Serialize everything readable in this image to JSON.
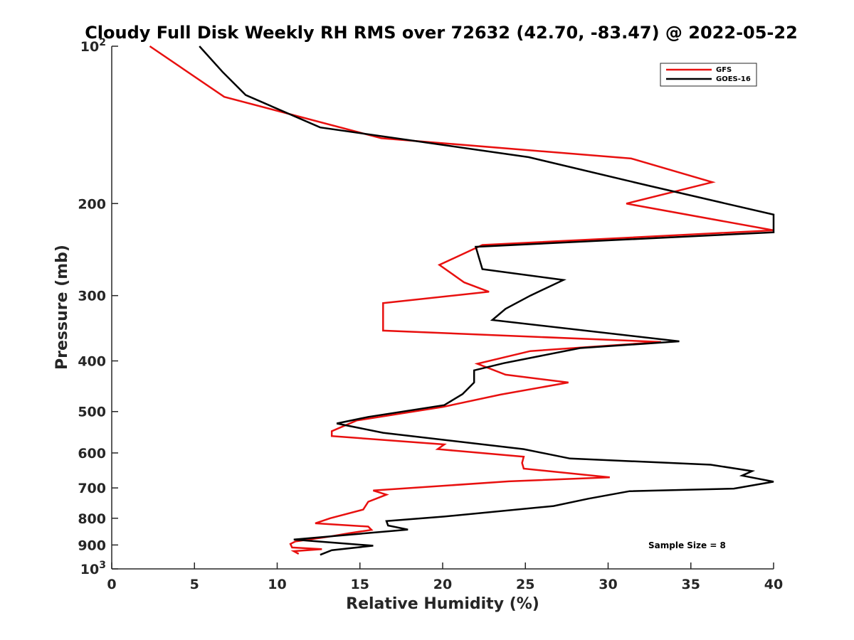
{
  "chart_data": {
    "type": "line",
    "title": "Cloudy Full Disk Weekly RH RMS over 72632 (42.70, -83.47) @ 2022-05-22",
    "xlabel": "Relative Humidity (%)",
    "ylabel": "Pressure (mb)",
    "xlim": [
      0,
      40
    ],
    "ylim": [
      100,
      1000
    ],
    "y_scale": "log",
    "y_reversed": true,
    "grid": false,
    "legend_position": "top-right",
    "annotation": "Sample Size = 8",
    "x_ticks": [
      "0",
      "5",
      "10",
      "15",
      "20",
      "25",
      "30",
      "35",
      "40"
    ],
    "y_ticks": [
      {
        "value": 100,
        "base": "10",
        "exp": "2"
      },
      {
        "value": 200,
        "label": "200"
      },
      {
        "value": 300,
        "label": "300"
      },
      {
        "value": 400,
        "label": "400"
      },
      {
        "value": 500,
        "label": "500"
      },
      {
        "value": 600,
        "label": "600"
      },
      {
        "value": 700,
        "label": "700"
      },
      {
        "value": 800,
        "label": "800"
      },
      {
        "value": 900,
        "label": "900"
      },
      {
        "value": 1000,
        "base": "10",
        "exp": "3"
      }
    ],
    "series": [
      {
        "name": "GFS",
        "color": "#e8100f",
        "points": [
          [
            2.3,
            100
          ],
          [
            6.8,
            125
          ],
          [
            16.3,
            150
          ],
          [
            31.4,
            164
          ],
          [
            36.3,
            182
          ],
          [
            31.1,
            200
          ],
          [
            40.0,
            225
          ],
          [
            22.4,
            240
          ],
          [
            19.8,
            262
          ],
          [
            21.3,
            283
          ],
          [
            22.8,
            295
          ],
          [
            16.4,
            310
          ],
          [
            16.4,
            350
          ],
          [
            33.2,
            368
          ],
          [
            25.3,
            383
          ],
          [
            22.1,
            405
          ],
          [
            23.8,
            425
          ],
          [
            27.6,
            440
          ],
          [
            23.5,
            464
          ],
          [
            20.0,
            490
          ],
          [
            14.8,
            520
          ],
          [
            13.3,
            545
          ],
          [
            13.3,
            557
          ],
          [
            20.1,
            578
          ],
          [
            19.7,
            590
          ],
          [
            24.9,
            610
          ],
          [
            24.8,
            627
          ],
          [
            24.9,
            643
          ],
          [
            30.1,
            668
          ],
          [
            24.0,
            680
          ],
          [
            15.8,
            708
          ],
          [
            16.6,
            721
          ],
          [
            15.5,
            744
          ],
          [
            15.2,
            770
          ],
          [
            13.2,
            800
          ],
          [
            12.3,
            818
          ],
          [
            15.5,
            830
          ],
          [
            15.7,
            842
          ],
          [
            14.3,
            855
          ],
          [
            13.1,
            868
          ],
          [
            11.1,
            886
          ],
          [
            10.8,
            896
          ],
          [
            10.9,
            910
          ],
          [
            12.7,
            917
          ],
          [
            11.0,
            925
          ],
          [
            11.3,
            936
          ]
        ]
      },
      {
        "name": "GOES-16",
        "color": "#000000",
        "points": [
          [
            5.3,
            100
          ],
          [
            6.7,
            112
          ],
          [
            8.1,
            124
          ],
          [
            12.6,
            143
          ],
          [
            25.2,
            163
          ],
          [
            32.5,
            185
          ],
          [
            40.0,
            210
          ],
          [
            40.0,
            227
          ],
          [
            22.0,
            242
          ],
          [
            22.4,
            267
          ],
          [
            27.3,
            280
          ],
          [
            25.3,
            300
          ],
          [
            23.8,
            318
          ],
          [
            23.0,
            334
          ],
          [
            34.3,
            367
          ],
          [
            28.3,
            378
          ],
          [
            23.7,
            404
          ],
          [
            21.9,
            417
          ],
          [
            21.9,
            440
          ],
          [
            21.2,
            463
          ],
          [
            20.1,
            486
          ],
          [
            15.5,
            512
          ],
          [
            13.6,
            527
          ],
          [
            16.4,
            549
          ],
          [
            24.9,
            590
          ],
          [
            27.7,
            615
          ],
          [
            36.2,
            632
          ],
          [
            38.7,
            650
          ],
          [
            38.1,
            663
          ],
          [
            40.0,
            681
          ],
          [
            37.6,
            702
          ],
          [
            31.3,
            710
          ],
          [
            28.8,
            734
          ],
          [
            26.7,
            758
          ],
          [
            20.1,
            794
          ],
          [
            16.6,
            810
          ],
          [
            16.7,
            826
          ],
          [
            17.9,
            841
          ],
          [
            11.0,
            879
          ],
          [
            15.8,
            903
          ],
          [
            13.3,
            921
          ],
          [
            12.6,
            940
          ]
        ]
      }
    ]
  }
}
